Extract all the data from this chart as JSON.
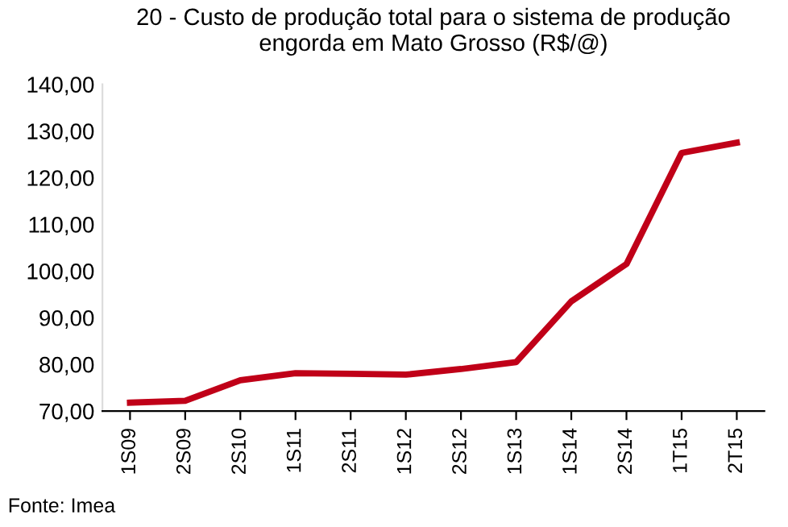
{
  "chart_data": {
    "type": "line",
    "title": "20 - Custo de produção total para o sistema de produção\nengorda em Mato Grosso (R$/@)",
    "categories": [
      "1S09",
      "2S09",
      "2S10",
      "1S11",
      "2S11",
      "1S12",
      "2S12",
      "1S13",
      "1S14",
      "2S14",
      "1T15",
      "2T15"
    ],
    "series": [
      {
        "color": "#c00018",
        "values": [
          71.8,
          72.2,
          76.6,
          78.1,
          78.0,
          77.8,
          79.0,
          80.5,
          93.5,
          101.5,
          125.3,
          127.5
        ]
      }
    ],
    "ylim": [
      70,
      140
    ],
    "yticks": [
      {
        "value": 70,
        "label": "70,00"
      },
      {
        "value": 80,
        "label": "80,00"
      },
      {
        "value": 90,
        "label": "90,00"
      },
      {
        "value": 100,
        "label": "100,00"
      },
      {
        "value": 110,
        "label": "110,00"
      },
      {
        "value": 120,
        "label": "120,00"
      },
      {
        "value": 130,
        "label": "130,00"
      },
      {
        "value": 140,
        "label": "140,00"
      }
    ],
    "grid": false,
    "legend": false,
    "marker": "none",
    "line_style": "solid",
    "annotations": [
      "Fonte: Imea"
    ]
  }
}
